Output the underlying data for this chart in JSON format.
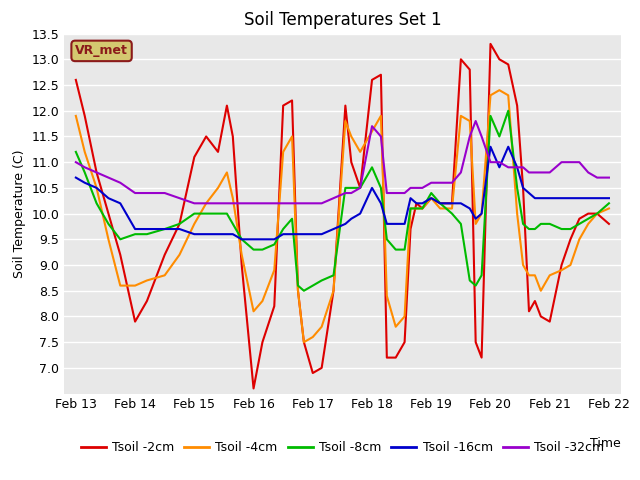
{
  "title": "Soil Temperatures Set 1",
  "xlabel": "Time",
  "ylabel": "Soil Temperature (C)",
  "ylim": [
    6.5,
    13.5
  ],
  "yticks": [
    7.0,
    7.5,
    8.0,
    8.5,
    9.0,
    9.5,
    10.0,
    10.5,
    11.0,
    11.5,
    12.0,
    12.5,
    13.0,
    13.5
  ],
  "bg_color": "#e8e8e8",
  "grid_color": "white",
  "annotation_label": "VR_met",
  "annotation_bg": "#d4c870",
  "annotation_border": "#8b1a1a",
  "series": {
    "Tsoil -2cm": {
      "color": "#dd0000",
      "x": [
        0.0,
        0.15,
        0.35,
        0.55,
        0.75,
        1.0,
        1.2,
        1.5,
        1.75,
        2.0,
        2.2,
        2.4,
        2.55,
        2.65,
        2.8,
        3.0,
        3.15,
        3.35,
        3.5,
        3.65,
        3.75,
        3.85,
        4.0,
        4.15,
        4.35,
        4.55,
        4.65,
        4.8,
        5.0,
        5.15,
        5.25,
        5.4,
        5.55,
        5.65,
        5.75,
        5.85,
        6.0,
        6.15,
        6.35,
        6.5,
        6.65,
        6.75,
        6.85,
        7.0,
        7.15,
        7.3,
        7.45,
        7.55,
        7.65,
        7.75,
        7.85,
        8.0,
        8.2,
        8.35,
        8.5,
        8.65,
        8.8,
        9.0
      ],
      "y": [
        12.6,
        11.9,
        10.8,
        10.0,
        9.2,
        7.9,
        8.3,
        9.2,
        9.8,
        11.1,
        11.5,
        11.2,
        12.1,
        11.5,
        9.0,
        6.6,
        7.5,
        8.2,
        12.1,
        12.2,
        8.5,
        7.5,
        6.9,
        7.0,
        8.5,
        12.1,
        11.0,
        10.5,
        12.6,
        12.7,
        7.2,
        7.2,
        7.5,
        9.7,
        10.2,
        10.1,
        10.3,
        10.2,
        10.2,
        13.0,
        12.8,
        7.5,
        7.2,
        13.3,
        13.0,
        12.9,
        12.1,
        10.5,
        8.1,
        8.3,
        8.0,
        7.9,
        9.0,
        9.5,
        9.9,
        10.0,
        10.0,
        9.8
      ]
    },
    "Tsoil -4cm": {
      "color": "#ff8c00",
      "x": [
        0.0,
        0.15,
        0.35,
        0.55,
        0.75,
        1.0,
        1.2,
        1.5,
        1.75,
        2.0,
        2.2,
        2.4,
        2.55,
        2.65,
        2.8,
        3.0,
        3.15,
        3.35,
        3.5,
        3.65,
        3.75,
        3.85,
        4.0,
        4.15,
        4.35,
        4.55,
        4.65,
        4.8,
        5.0,
        5.15,
        5.25,
        5.4,
        5.55,
        5.65,
        5.75,
        5.85,
        6.0,
        6.15,
        6.35,
        6.5,
        6.65,
        6.75,
        6.85,
        7.0,
        7.15,
        7.3,
        7.45,
        7.55,
        7.65,
        7.75,
        7.85,
        8.0,
        8.2,
        8.35,
        8.5,
        8.65,
        8.8,
        9.0
      ],
      "y": [
        11.9,
        11.2,
        10.5,
        9.5,
        8.6,
        8.6,
        8.7,
        8.8,
        9.2,
        9.8,
        10.2,
        10.5,
        10.8,
        10.3,
        9.2,
        8.1,
        8.3,
        8.9,
        11.2,
        11.5,
        8.5,
        7.5,
        7.6,
        7.8,
        8.5,
        11.8,
        11.5,
        11.2,
        11.6,
        11.9,
        8.4,
        7.8,
        8.0,
        10.1,
        10.1,
        10.1,
        10.3,
        10.1,
        10.1,
        11.9,
        11.8,
        9.8,
        10.0,
        12.3,
        12.4,
        12.3,
        10.0,
        9.0,
        8.8,
        8.8,
        8.5,
        8.8,
        8.9,
        9.0,
        9.5,
        9.8,
        10.0,
        10.1
      ]
    },
    "Tsoil -8cm": {
      "color": "#00bb00",
      "x": [
        0.0,
        0.15,
        0.35,
        0.55,
        0.75,
        1.0,
        1.2,
        1.5,
        1.75,
        2.0,
        2.2,
        2.4,
        2.55,
        2.65,
        2.8,
        3.0,
        3.15,
        3.35,
        3.5,
        3.65,
        3.75,
        3.85,
        4.0,
        4.15,
        4.35,
        4.55,
        4.65,
        4.8,
        5.0,
        5.15,
        5.25,
        5.4,
        5.55,
        5.65,
        5.75,
        5.85,
        6.0,
        6.15,
        6.35,
        6.5,
        6.65,
        6.75,
        6.85,
        7.0,
        7.15,
        7.3,
        7.45,
        7.55,
        7.65,
        7.75,
        7.85,
        8.0,
        8.2,
        8.35,
        8.5,
        8.65,
        8.8,
        9.0
      ],
      "y": [
        11.2,
        10.8,
        10.2,
        9.8,
        9.5,
        9.6,
        9.6,
        9.7,
        9.8,
        10.0,
        10.0,
        10.0,
        10.0,
        9.8,
        9.5,
        9.3,
        9.3,
        9.4,
        9.7,
        9.9,
        8.6,
        8.5,
        8.6,
        8.7,
        8.8,
        10.5,
        10.5,
        10.5,
        10.9,
        10.5,
        9.5,
        9.3,
        9.3,
        10.1,
        10.1,
        10.1,
        10.4,
        10.2,
        10.0,
        9.8,
        8.7,
        8.6,
        8.8,
        11.9,
        11.5,
        12.0,
        10.5,
        9.8,
        9.7,
        9.7,
        9.8,
        9.8,
        9.7,
        9.7,
        9.8,
        9.9,
        10.0,
        10.2
      ]
    },
    "Tsoil -16cm": {
      "color": "#0000cc",
      "x": [
        0.0,
        0.15,
        0.35,
        0.55,
        0.75,
        1.0,
        1.2,
        1.5,
        1.75,
        2.0,
        2.2,
        2.4,
        2.55,
        2.65,
        2.8,
        3.0,
        3.15,
        3.35,
        3.5,
        3.65,
        3.75,
        3.85,
        4.0,
        4.15,
        4.35,
        4.55,
        4.65,
        4.8,
        5.0,
        5.15,
        5.25,
        5.4,
        5.55,
        5.65,
        5.75,
        5.85,
        6.0,
        6.15,
        6.35,
        6.5,
        6.65,
        6.75,
        6.85,
        7.0,
        7.15,
        7.3,
        7.45,
        7.55,
        7.65,
        7.75,
        7.85,
        8.0,
        8.2,
        8.35,
        8.5,
        8.65,
        8.8,
        9.0
      ],
      "y": [
        10.7,
        10.6,
        10.5,
        10.3,
        10.2,
        9.7,
        9.7,
        9.7,
        9.7,
        9.6,
        9.6,
        9.6,
        9.6,
        9.6,
        9.5,
        9.5,
        9.5,
        9.5,
        9.6,
        9.6,
        9.6,
        9.6,
        9.6,
        9.6,
        9.7,
        9.8,
        9.9,
        10.0,
        10.5,
        10.2,
        9.8,
        9.8,
        9.8,
        10.3,
        10.2,
        10.2,
        10.3,
        10.2,
        10.2,
        10.2,
        10.1,
        9.9,
        10.0,
        11.3,
        10.9,
        11.3,
        10.9,
        10.5,
        10.4,
        10.3,
        10.3,
        10.3,
        10.3,
        10.3,
        10.3,
        10.3,
        10.3,
        10.3
      ]
    },
    "Tsoil -32cm": {
      "color": "#9900cc",
      "x": [
        0.0,
        0.15,
        0.35,
        0.55,
        0.75,
        1.0,
        1.2,
        1.5,
        1.75,
        2.0,
        2.2,
        2.4,
        2.55,
        2.65,
        2.8,
        3.0,
        3.15,
        3.35,
        3.5,
        3.65,
        3.75,
        3.85,
        4.0,
        4.15,
        4.35,
        4.55,
        4.65,
        4.8,
        5.0,
        5.15,
        5.25,
        5.4,
        5.55,
        5.65,
        5.75,
        5.85,
        6.0,
        6.15,
        6.35,
        6.5,
        6.65,
        6.75,
        6.85,
        7.0,
        7.15,
        7.3,
        7.45,
        7.55,
        7.65,
        7.75,
        7.85,
        8.0,
        8.2,
        8.35,
        8.5,
        8.65,
        8.8,
        9.0
      ],
      "y": [
        11.0,
        10.9,
        10.8,
        10.7,
        10.6,
        10.4,
        10.4,
        10.4,
        10.3,
        10.2,
        10.2,
        10.2,
        10.2,
        10.2,
        10.2,
        10.2,
        10.2,
        10.2,
        10.2,
        10.2,
        10.2,
        10.2,
        10.2,
        10.2,
        10.3,
        10.4,
        10.4,
        10.5,
        11.7,
        11.5,
        10.4,
        10.4,
        10.4,
        10.5,
        10.5,
        10.5,
        10.6,
        10.6,
        10.6,
        10.8,
        11.5,
        11.8,
        11.5,
        11.0,
        11.0,
        10.9,
        10.9,
        10.9,
        10.8,
        10.8,
        10.8,
        10.8,
        11.0,
        11.0,
        11.0,
        10.8,
        10.7,
        10.7
      ]
    }
  },
  "xtick_positions": [
    0,
    1,
    2,
    3,
    4,
    5,
    6,
    7,
    8,
    9
  ],
  "xtick_labels": [
    "Feb 13",
    "Feb 14",
    "Feb 15",
    "Feb 16",
    "Feb 17",
    "Feb 18",
    "Feb 19",
    "Feb 20",
    "Feb 21",
    "Feb 22"
  ],
  "xlim": [
    -0.2,
    9.2
  ],
  "figsize": [
    6.4,
    4.8
  ],
  "dpi": 100,
  "title_fontsize": 12,
  "axis_fontsize": 9,
  "tick_fontsize": 9
}
